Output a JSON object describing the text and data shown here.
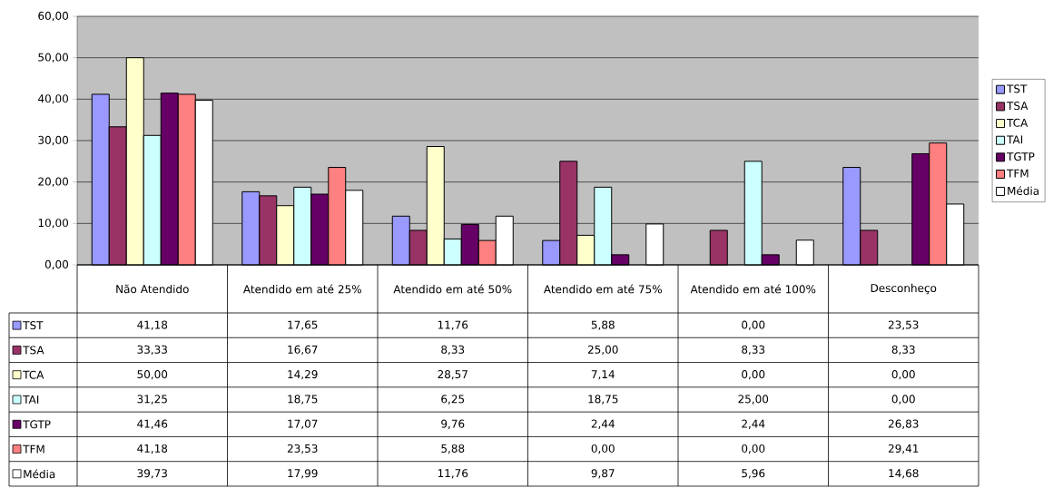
{
  "chart_data": {
    "type": "bar",
    "categories": [
      "Não Atendido",
      "Atendido em até 25%",
      "Atendido em até 50%",
      "Atendido em até 75%",
      "Atendido em até 100%",
      "Desconheço"
    ],
    "series": [
      {
        "name": "TST",
        "color": "#9999ff",
        "values": [
          41.18,
          17.65,
          11.76,
          5.88,
          0.0,
          23.53
        ],
        "value_labels": [
          "41,18",
          "17,65",
          "11,76",
          "5,88",
          "0,00",
          "23,53"
        ]
      },
      {
        "name": "TSA",
        "color": "#993366",
        "values": [
          33.33,
          16.67,
          8.33,
          25.0,
          8.33,
          8.33
        ],
        "value_labels": [
          "33,33",
          "16,67",
          "8,33",
          "25,00",
          "8,33",
          "8,33"
        ]
      },
      {
        "name": "TCA",
        "color": "#ffffcc",
        "values": [
          50.0,
          14.29,
          28.57,
          7.14,
          0.0,
          0.0
        ],
        "value_labels": [
          "50,00",
          "14,29",
          "28,57",
          "7,14",
          "0,00",
          "0,00"
        ]
      },
      {
        "name": "TAI",
        "color": "#ccffff",
        "values": [
          31.25,
          18.75,
          6.25,
          18.75,
          25.0,
          0.0
        ],
        "value_labels": [
          "31,25",
          "18,75",
          "6,25",
          "18,75",
          "25,00",
          "0,00"
        ]
      },
      {
        "name": "TGTP",
        "color": "#660066",
        "values": [
          41.46,
          17.07,
          9.76,
          2.44,
          2.44,
          26.83
        ],
        "value_labels": [
          "41,46",
          "17,07",
          "9,76",
          "2,44",
          "2,44",
          "26,83"
        ]
      },
      {
        "name": "TFM",
        "color": "#ff8080",
        "values": [
          41.18,
          23.53,
          5.88,
          0.0,
          0.0,
          29.41
        ],
        "value_labels": [
          "41,18",
          "23,53",
          "5,88",
          "0,00",
          "0,00",
          "29,41"
        ]
      },
      {
        "name": "Média",
        "color": "#ffffff",
        "values": [
          39.73,
          17.99,
          11.76,
          9.87,
          5.96,
          14.68
        ],
        "value_labels": [
          "39,73",
          "17,99",
          "11,76",
          "9,87",
          "5,96",
          "14,68"
        ]
      }
    ],
    "ylim": [
      0,
      60
    ],
    "yticks": [
      {
        "value": 0,
        "label": "0,00"
      },
      {
        "value": 10,
        "label": "10,00"
      },
      {
        "value": 20,
        "label": "20,00"
      },
      {
        "value": 30,
        "label": "30,00"
      },
      {
        "value": 40,
        "label": "40,00"
      },
      {
        "value": 50,
        "label": "50,00"
      },
      {
        "value": 60,
        "label": "60,00"
      }
    ],
    "grid": "y",
    "legend": "right"
  }
}
